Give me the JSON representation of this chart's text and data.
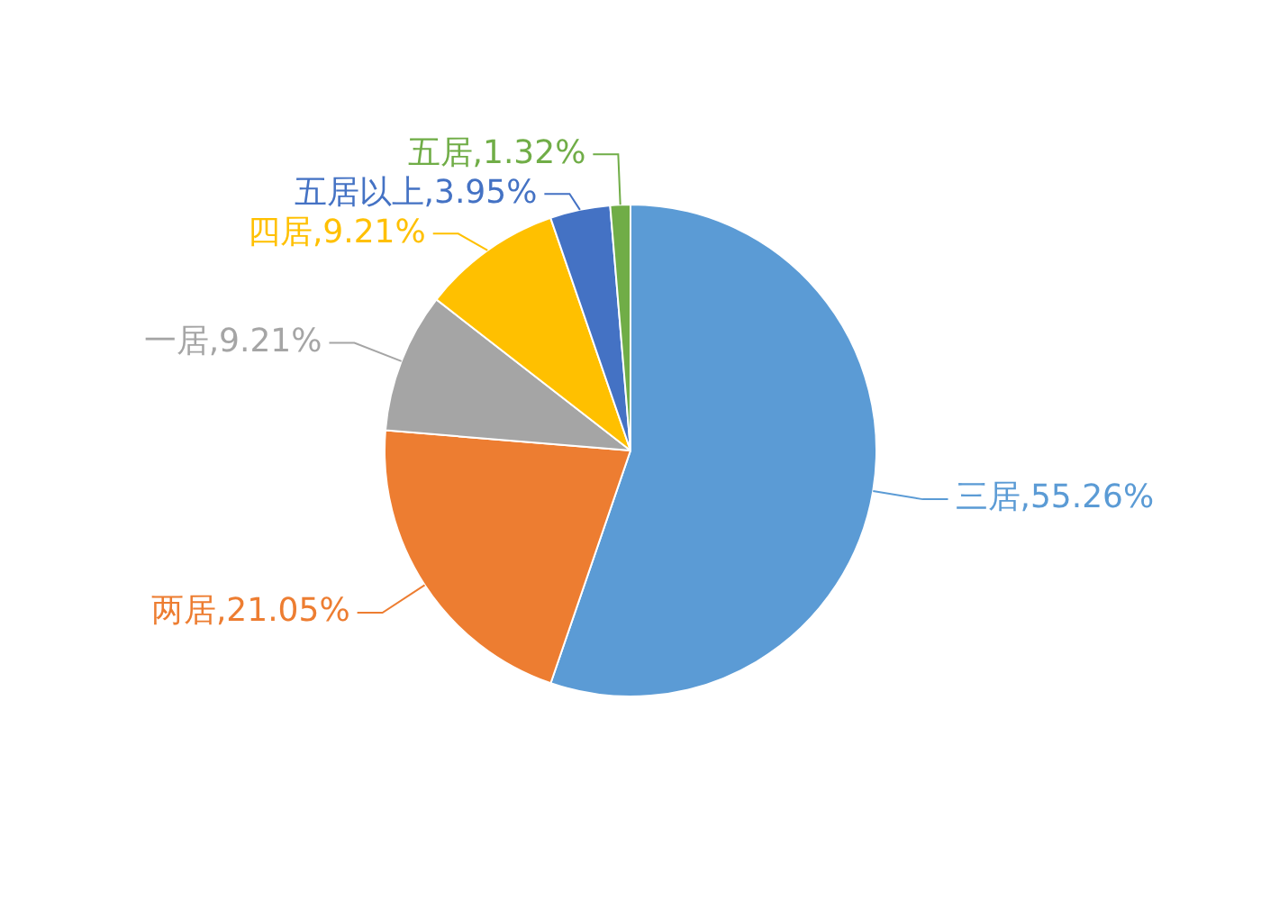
{
  "chart_data": {
    "type": "pie",
    "categories": [
      "三居",
      "两居",
      "一居",
      "四居",
      "五居以上",
      "五居"
    ],
    "values": [
      55.26,
      21.05,
      9.21,
      9.21,
      3.95,
      1.32
    ],
    "colors": [
      "#5b9bd5",
      "#ed7d31",
      "#a5a5a5",
      "#ffc000",
      "#4472c4",
      "#70ad47"
    ],
    "value_labels": [
      "55.26%",
      "21.05%",
      "9.21%",
      "9.21%",
      "3.95%",
      "1.32%"
    ],
    "legend": false
  }
}
